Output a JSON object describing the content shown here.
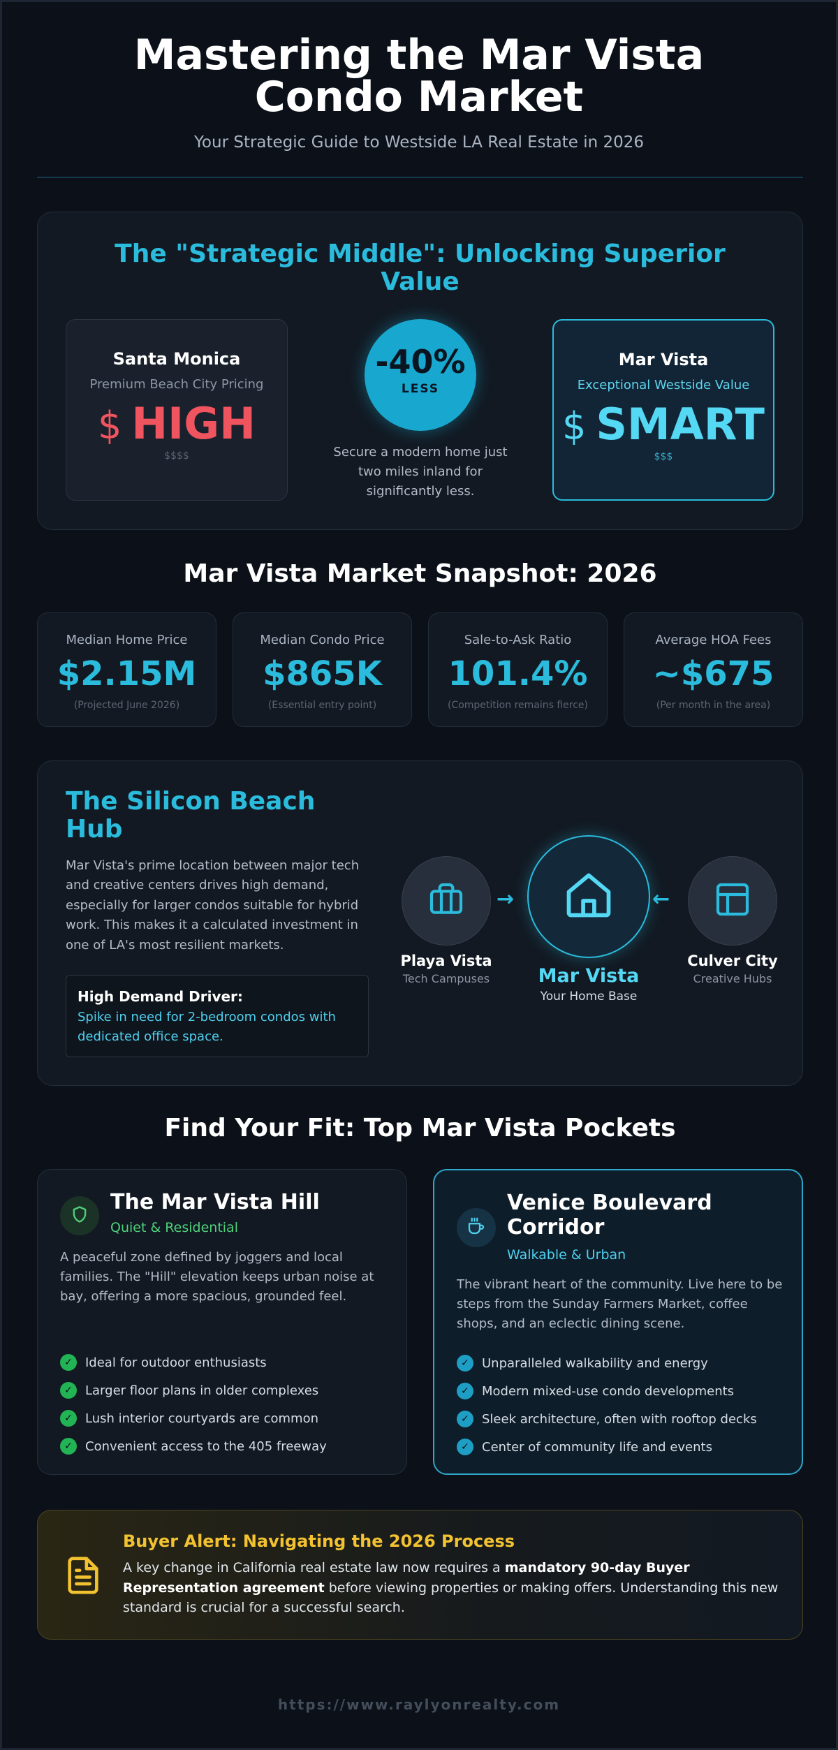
{
  "header": {
    "title": "Mastering the Mar Vista Condo Market",
    "subtitle": "Your Strategic Guide to Westside LA Real Estate in 2026"
  },
  "strategic": {
    "title": "The \"Strategic Middle\": Unlocking Superior Value",
    "left_card": {
      "name": "Santa Monica",
      "sub": "Premium Beach City Pricing",
      "symbol": "$",
      "word": "HIGH",
      "tier": "$$$$"
    },
    "center": {
      "percent": "-40%",
      "label": "LESS",
      "description": "Secure a modern home just two miles inland for significantly less."
    },
    "right_card": {
      "name": "Mar Vista",
      "sub": "Exceptional Westside Value",
      "symbol": "$",
      "word": "SMART",
      "tier": "$$$"
    }
  },
  "snapshot": {
    "title": "Mar Vista Market Snapshot: 2026",
    "stats": [
      {
        "label": "Median Home Price",
        "value": "$2.15M",
        "note": "(Projected June 2026)"
      },
      {
        "label": "Median Condo Price",
        "value": "$865K",
        "note": "(Essential entry point)"
      },
      {
        "label": "Sale-to-Ask Ratio",
        "value": "101.4%",
        "note": "(Competition remains fierce)"
      },
      {
        "label": "Average HOA Fees",
        "value": "~$675",
        "note": "(Per month in the area)"
      }
    ]
  },
  "hub": {
    "title": "The Silicon Beach Hub",
    "body": "Mar Vista's prime location between major tech and creative centers drives high demand, especially for larger condos suitable for hybrid work. This makes it a calculated investment in one of LA's most resilient markets.",
    "callout_title": "High Demand Driver:",
    "callout_text": "Spike in need for 2-bedroom condos with dedicated office space.",
    "nodes": [
      {
        "name": "Playa Vista",
        "sub": "Tech Campuses",
        "icon": "briefcase-icon"
      },
      {
        "name": "Mar Vista",
        "sub": "Your Home Base",
        "icon": "home-icon"
      },
      {
        "name": "Culver City",
        "sub": "Creative Hubs",
        "icon": "layout-icon"
      }
    ],
    "arrows": [
      "→",
      "←"
    ]
  },
  "pockets": {
    "title": "Find Your Fit: Top Mar Vista Pockets",
    "items": [
      {
        "name": "The Mar Vista Hill",
        "tag": "Quiet & Residential",
        "icon": "shield-icon",
        "description": "A peaceful zone defined by joggers and local families. The \"Hill\" elevation keeps urban noise at bay, offering a more spacious, grounded feel.",
        "features": [
          "Ideal for outdoor enthusiasts",
          "Larger floor plans in older complexes",
          "Lush interior courtyards are common",
          "Convenient access to the 405 freeway"
        ]
      },
      {
        "name": "Venice Boulevard Corridor",
        "tag": "Walkable & Urban",
        "icon": "coffee-icon",
        "description": "The vibrant heart of the community. Live here to be steps from the Sunday Farmers Market, coffee shops, and an eclectic dining scene.",
        "features": [
          "Unparalleled walkability and energy",
          "Modern mixed-use condo developments",
          "Sleek architecture, often with rooftop decks",
          "Center of community life and events"
        ]
      }
    ],
    "check": "✓"
  },
  "alert": {
    "title": "Buyer Alert: Navigating the 2026 Process",
    "text_1": "A key change in California real estate law now requires a ",
    "text_bold": "mandatory 90-day Buyer Representation agreement",
    "text_2": " before viewing properties or making offers. Understanding this new standard is crucial for a successful search.",
    "icon": "document-icon"
  },
  "footer": {
    "url": "https://www.raylyonrealty.com"
  },
  "colors": {
    "accent": "#2bbbdc",
    "danger": "#f0545f",
    "green": "#22b355",
    "alert": "#f2c230"
  }
}
